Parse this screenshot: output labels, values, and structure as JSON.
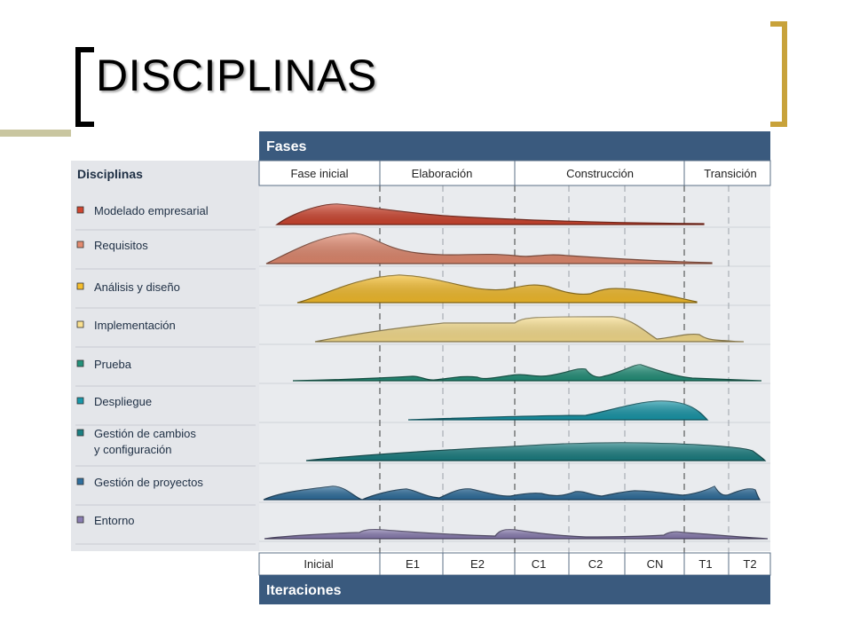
{
  "slide": {
    "title": "DISCIPLINAS"
  },
  "diagram": {
    "phases_header": "Fases",
    "disciplines_header": "Disciplinas",
    "iterations_header": "Iteraciones",
    "phases": [
      "Fase inicial",
      "Elaboración",
      "Construcción",
      "Transición"
    ],
    "iterations": [
      "Inicial",
      "E1",
      "E2",
      "C1",
      "C2",
      "CN",
      "T1",
      "T2"
    ],
    "disciplines": [
      {
        "label": "Modelado empresarial",
        "color": "#d0452f"
      },
      {
        "label": "Requisitos",
        "color": "#e38a6f"
      },
      {
        "label": "Análisis y diseño",
        "color": "#f6be2c"
      },
      {
        "label": "Implementación",
        "color": "#fae08e"
      },
      {
        "label": "Prueba",
        "color": "#23917a"
      },
      {
        "label": "Despliegue",
        "color": "#1898aa"
      },
      {
        "label": "Gestión de cambios",
        "label2": "y configuración",
        "color": "#1a7f82"
      },
      {
        "label": "Gestión de proyectos",
        "color": "#2f6f9e"
      },
      {
        "label": "Entorno",
        "color": "#8a7db2"
      }
    ],
    "colors": {
      "header_bar": "#3a5a7e",
      "panel_gray": "#e4e6ea",
      "accent_gold": "#c8a23a",
      "deco_olive": "#c9c6a0"
    }
  }
}
